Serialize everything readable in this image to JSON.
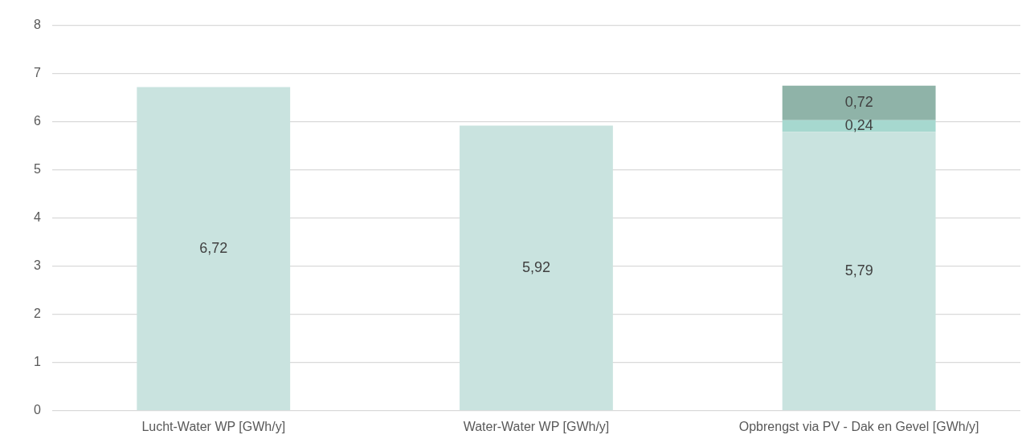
{
  "chart_data": {
    "type": "bar",
    "stacked": true,
    "categories": [
      "Lucht-Water WP [GWh/y]",
      "Water-Water WP [GWh/y]",
      "Opbrengst via PV - Dak en Gevel [GWh/y]"
    ],
    "series": [
      {
        "color": "#c9e3df",
        "values": [
          6.72,
          5.92,
          5.79
        ],
        "value_labels": [
          "6,72",
          "5,92",
          "5,79"
        ]
      },
      {
        "color": "#a6d8cf",
        "values": [
          null,
          null,
          0.24
        ],
        "value_labels": [
          null,
          null,
          "0,24"
        ]
      },
      {
        "color": "#8fb3a8",
        "values": [
          null,
          null,
          0.72
        ],
        "value_labels": [
          null,
          null,
          "0,72"
        ]
      }
    ],
    "ylim": [
      0,
      8
    ],
    "yticks": [
      0,
      1,
      2,
      3,
      4,
      5,
      6,
      7,
      8
    ],
    "grid": "y",
    "legend": false
  }
}
